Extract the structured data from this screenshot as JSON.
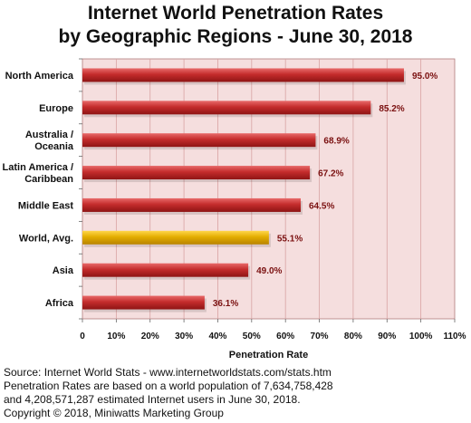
{
  "chart_data": {
    "type": "bar",
    "orientation": "horizontal",
    "title": "Internet World Penetration Rates",
    "subtitle": "by Geographic Regions - June 30, 2018",
    "xlabel": "Penetration Rate",
    "ylabel": "",
    "xlim": [
      0,
      110
    ],
    "x_ticks": [
      "0",
      "10%",
      "20%",
      "30%",
      "40%",
      "50%",
      "60%",
      "70%",
      "80%",
      "90%",
      "100%",
      "110%"
    ],
    "categories": [
      "North America",
      "Europe",
      "Australia / Oceania",
      "Latin America / Caribbean",
      "Middle East",
      "World, Avg.",
      "Asia",
      "Africa"
    ],
    "category_lines": [
      [
        "North America"
      ],
      [
        "Europe"
      ],
      [
        "Australia /",
        "Oceania"
      ],
      [
        "Latin America /",
        "Caribbean"
      ],
      [
        "Middle East"
      ],
      [
        "World, Avg."
      ],
      [
        "Asia"
      ],
      [
        "Africa"
      ]
    ],
    "values": [
      95.0,
      85.2,
      68.9,
      67.2,
      64.5,
      55.1,
      49.0,
      36.1
    ],
    "data_labels": [
      "95.0%",
      "85.2%",
      "68.9%",
      "67.2%",
      "64.5%",
      "55.1%",
      "49.0%",
      "36.1%"
    ],
    "highlight_category": "World, Avg.",
    "grid": true,
    "colors": {
      "bar": "#c02a2a",
      "highlight_bar": "#e0aa00",
      "plot_background": "#f5dede",
      "gridline": "#d9a3a3",
      "data_label": "#7a1010"
    }
  },
  "footer": {
    "source": "Source: Internet World Stats - www.internetworldstats.com/stats.htm",
    "note_line1": "Penetration Rates are based on a world population of 7,634,758,428",
    "note_line2": "and 4,208,571,287 estimated Internet users in June 30, 2018.",
    "copyright": "Copyright © 2018, Miniwatts Marketing Group"
  }
}
